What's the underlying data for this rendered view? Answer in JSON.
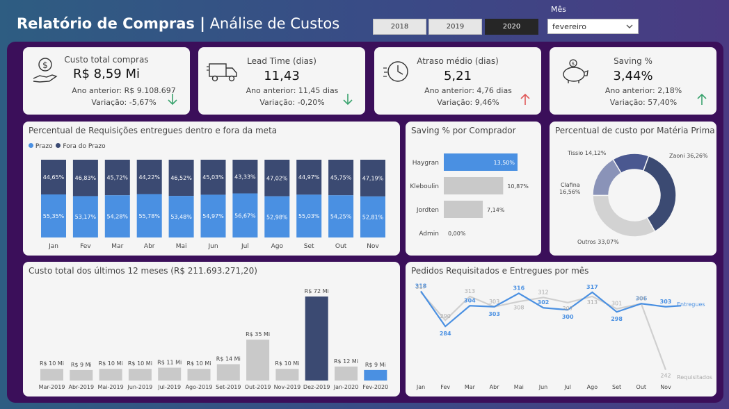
{
  "header": {
    "title_bold": "Relatório de Compras |",
    "title_rest": " Análise de Custos"
  },
  "year_filter": {
    "buttons": [
      "2018",
      "2019",
      "2020"
    ],
    "selected": "2020"
  },
  "month_filter": {
    "label": "Mês",
    "value": "fevereiro"
  },
  "kpis": [
    {
      "title": "Custo total compras",
      "value": "R$ 8,59 Mi",
      "prev": "Ano anterior: R$ 9.108.697",
      "var": "Variação: -5,67%",
      "trend": "down",
      "icon": "money-hand-icon"
    },
    {
      "title": "Lead Time (dias)",
      "value": "11,43",
      "prev": "Ano anterior: 11,45 dias",
      "var": "Variação: -0,20%",
      "trend": "down",
      "icon": "delivery-truck-icon"
    },
    {
      "title": "Atraso médio (dias)",
      "value": "5,21",
      "prev": "Ano anterior: 4,76 dias",
      "var": "Variação: 9,46%",
      "trend": "up",
      "icon": "clock-icon"
    },
    {
      "title": "Saving %",
      "value": "3,44%",
      "prev": "Ano anterior: 2,18%",
      "var": "Variação: 57,40%",
      "trend": "up",
      "icon": "piggy-bank-icon"
    }
  ],
  "colors": {
    "dark": "#3b4a72",
    "blue": "#4a90e2",
    "gray": "#c9c9c9",
    "up_red": "#e05a5a",
    "down_green": "#3aa36e"
  },
  "charts": {
    "stacked": {
      "title": "Percentual de Requisições entregues dentro e fora da meta",
      "legend": [
        "Prazo",
        "Fora do Prazo"
      ]
    },
    "saving": {
      "title": "Saving % por Comprador"
    },
    "donut": {
      "title": "Percentual de custo por Matéria Prima"
    },
    "cost12": {
      "title": "Custo total dos últimos 12 meses (R$ 211.693.271,20)"
    },
    "orders": {
      "title": "Pedidos Requisitados e Entregues por mês"
    }
  },
  "chart_data": [
    {
      "type": "bar",
      "title": "Percentual de Requisições entregues dentro e fora da meta",
      "stacked": true,
      "categories": [
        "Jan",
        "Fev",
        "Mar",
        "Abr",
        "Mai",
        "Jun",
        "Jul",
        "Ago",
        "Set",
        "Out",
        "Nov"
      ],
      "series": [
        {
          "name": "Prazo",
          "values": [
            55.35,
            53.17,
            54.28,
            55.78,
            53.48,
            54.97,
            56.67,
            52.98,
            55.03,
            54.25,
            52.81
          ],
          "labels": [
            "55,35%",
            "53,17%",
            "54,28%",
            "55,78%",
            "53,48%",
            "54,97%",
            "56,67%",
            "52,98%",
            "55,03%",
            "54,25%",
            "52,81%"
          ]
        },
        {
          "name": "Fora do Prazo",
          "values": [
            44.65,
            46.83,
            45.72,
            44.22,
            46.52,
            45.03,
            43.33,
            47.02,
            44.97,
            45.75,
            47.19
          ],
          "labels": [
            "44,65%",
            "46,83%",
            "45,72%",
            "44,22%",
            "46,52%",
            "45,03%",
            "43,33%",
            "47,02%",
            "44,97%",
            "45,75%",
            "47,19%"
          ]
        }
      ]
    },
    {
      "type": "bar",
      "title": "Saving % por Comprador",
      "orientation": "horizontal",
      "categories": [
        "Haygran",
        "Kleboulin",
        "Jordten",
        "Admin"
      ],
      "values": [
        13.5,
        10.87,
        7.14,
        0.0
      ],
      "labels": [
        "13,50%",
        "10,87%",
        "7,14%",
        "0,00%"
      ],
      "highlight": "Haygran"
    },
    {
      "type": "pie",
      "title": "Percentual de custo por Matéria Prima",
      "donut": true,
      "slices": [
        {
          "name": "Zaoni",
          "value": 36.26,
          "label": "Zaoni 36,26%"
        },
        {
          "name": "Outros",
          "value": 33.07,
          "label": "Outros 33,07%"
        },
        {
          "name": "Clafina",
          "value": 16.56,
          "label_line1": "Clafina",
          "label_line2": "16,56%"
        },
        {
          "name": "Tissio",
          "value": 14.12,
          "label": "Tissio 14,12%"
        }
      ]
    },
    {
      "type": "bar",
      "title": "Custo total dos últimos 12 meses (R$ 211.693.271,20)",
      "categories": [
        "Mar-2019",
        "Abr-2019",
        "Mai-2019",
        "Jun-2019",
        "Jul-2019",
        "Ago-2019",
        "Set-2019",
        "Out-2019",
        "Nov-2019",
        "Dez-2019",
        "Jan-2020",
        "Fev-2020"
      ],
      "values": [
        10,
        9,
        10,
        10,
        11,
        10,
        14,
        35,
        10,
        72,
        12,
        9
      ],
      "labels": [
        "R$ 10 Mi",
        "R$ 9 Mi",
        "R$ 10 Mi",
        "R$ 10 Mi",
        "R$ 11 Mi",
        "R$ 10 Mi",
        "R$ 14 Mi",
        "R$ 35 Mi",
        "R$ 10 Mi",
        "R$ 72 Mi",
        "R$ 12 Mi",
        "R$ 9 Mi"
      ],
      "highlight_max": "Dez-2019",
      "highlight_selected": "Fev-2020"
    },
    {
      "type": "line",
      "title": "Pedidos Requisitados e Entregues por mês",
      "categories": [
        "Jan",
        "Fev",
        "Mar",
        "Abr",
        "Mai",
        "Jun",
        "Jul",
        "Ago",
        "Set",
        "Out",
        "Nov"
      ],
      "series": [
        {
          "name": "Entregues",
          "values": [
            318,
            284,
            304,
            303,
            316,
            302,
            300,
            317,
            298,
            306,
            303
          ]
        },
        {
          "name": "Requisitados",
          "values": [
            317,
            290,
            313,
            303,
            308,
            312,
            307,
            313,
            301,
            306,
            242
          ]
        }
      ],
      "ylim": [
        235,
        325
      ]
    }
  ]
}
